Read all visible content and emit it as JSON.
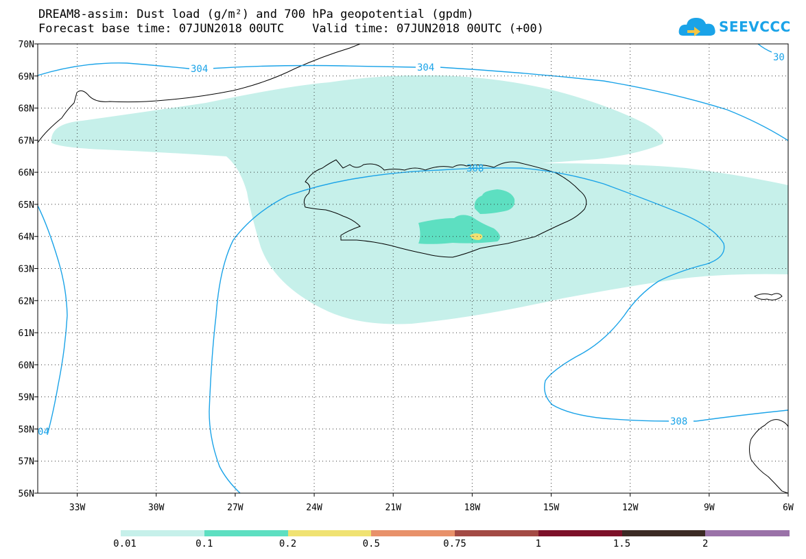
{
  "header": {
    "title_line1": "DREAM8-assim: Dust load (g/m²) and 700 hPa geopotential (gpdm)",
    "title_line2": "Forecast base time: 07JUN2018 00UTC    Valid time: 07JUN2018 00UTC (+00)"
  },
  "logo": {
    "text": "SEEVCCC",
    "icon": "cloud-logo-icon",
    "color": "#1aa3e8"
  },
  "map": {
    "lat_range": [
      56,
      70
    ],
    "lon_range": [
      -34.5,
      -6
    ],
    "lat_labels": [
      "70N",
      "69N",
      "68N",
      "67N",
      "66N",
      "65N",
      "64N",
      "63N",
      "62N",
      "61N",
      "60N",
      "59N",
      "58N",
      "57N",
      "56N"
    ],
    "lon_labels": [
      "33W",
      "30W",
      "27W",
      "24W",
      "21W",
      "18W",
      "15W",
      "12W",
      "9W",
      "6W"
    ],
    "contour_labels": [
      "304",
      "304",
      "308",
      "308",
      "30",
      "04"
    ],
    "contour_color": "#1aa3e8",
    "dust_colors": {
      "low": "#c6f0ea",
      "mid": "#5ddfc1",
      "high": "#f0e272"
    }
  },
  "colorbar": {
    "labels": [
      "0.01",
      "0.1",
      "0.2",
      "0.5",
      "0.75",
      "1",
      "1.5",
      "2"
    ],
    "colors": [
      "#c6f0ea",
      "#5ddfc1",
      "#f0e272",
      "#e8916a",
      "#a34a44",
      "#7d1129",
      "#3b2a24",
      "#9a72a8"
    ]
  }
}
